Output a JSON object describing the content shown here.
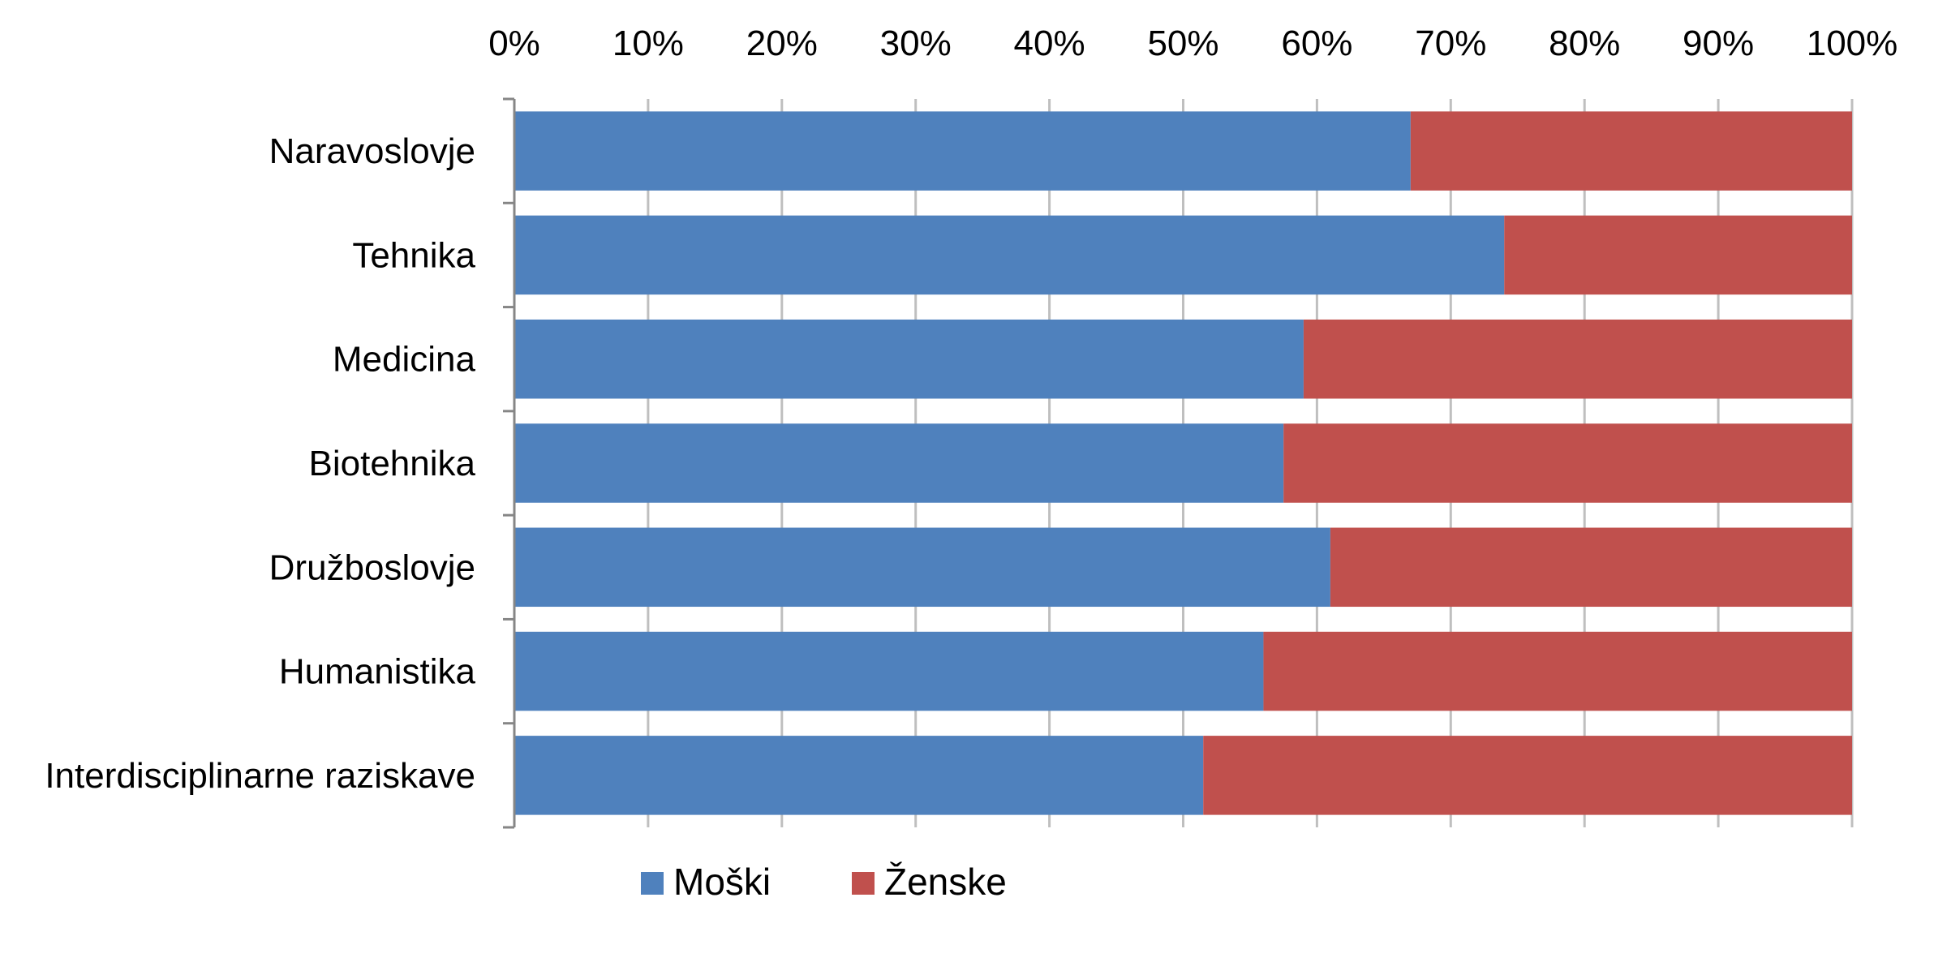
{
  "chart_data": {
    "type": "bar",
    "orientation": "horizontal",
    "stacked": "percent",
    "categories": [
      "Naravoslovje",
      "Tehnika",
      "Medicina",
      "Biotehnika",
      "Družboslovje",
      "Humanistika",
      "Interdisciplinarne raziskave"
    ],
    "series": [
      {
        "name": "Moški",
        "color": "#4F81BD",
        "values": [
          67,
          74,
          59,
          57.5,
          61,
          56,
          51.5
        ]
      },
      {
        "name": "Ženske",
        "color": "#C0504D",
        "values": [
          33,
          26,
          41,
          42.5,
          39,
          44,
          48.5
        ]
      }
    ],
    "x_ticks": [
      "0%",
      "10%",
      "20%",
      "30%",
      "40%",
      "50%",
      "60%",
      "70%",
      "80%",
      "90%",
      "100%"
    ],
    "xlim": [
      0,
      100
    ],
    "x_axis_position": "top",
    "grid": true,
    "legend": "bottom"
  }
}
